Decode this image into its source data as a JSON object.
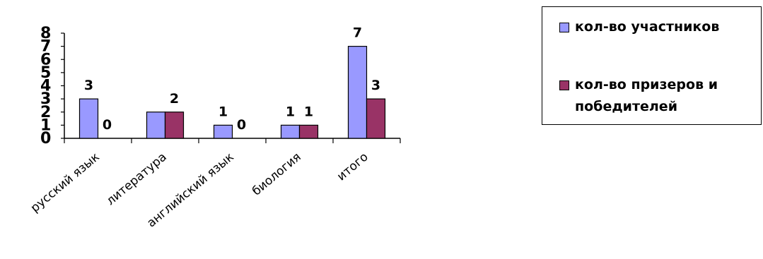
{
  "chart_data": {
    "type": "bar",
    "categories": [
      "русский язык",
      "литература",
      "английский язык",
      "биология",
      "итого"
    ],
    "series": [
      {
        "name": "кол-во участников",
        "values": [
          3,
          2,
          1,
          1,
          7
        ],
        "color": "#9999FF"
      },
      {
        "name": "кол-во призеров и победителей",
        "values": [
          0,
          2,
          0,
          1,
          3
        ],
        "color": "#993366"
      }
    ],
    "data_labels": [
      [
        "3",
        "0"
      ],
      [
        "",
        "2"
      ],
      [
        "1",
        "0"
      ],
      [
        "1",
        "1"
      ],
      [
        "7",
        "3"
      ]
    ],
    "ylim": [
      0,
      8
    ],
    "yticks": [
      0,
      1,
      2,
      3,
      4,
      5,
      6,
      7,
      8
    ],
    "title": "",
    "xlabel": "",
    "ylabel": "",
    "grid": false,
    "legend_position": "right"
  }
}
